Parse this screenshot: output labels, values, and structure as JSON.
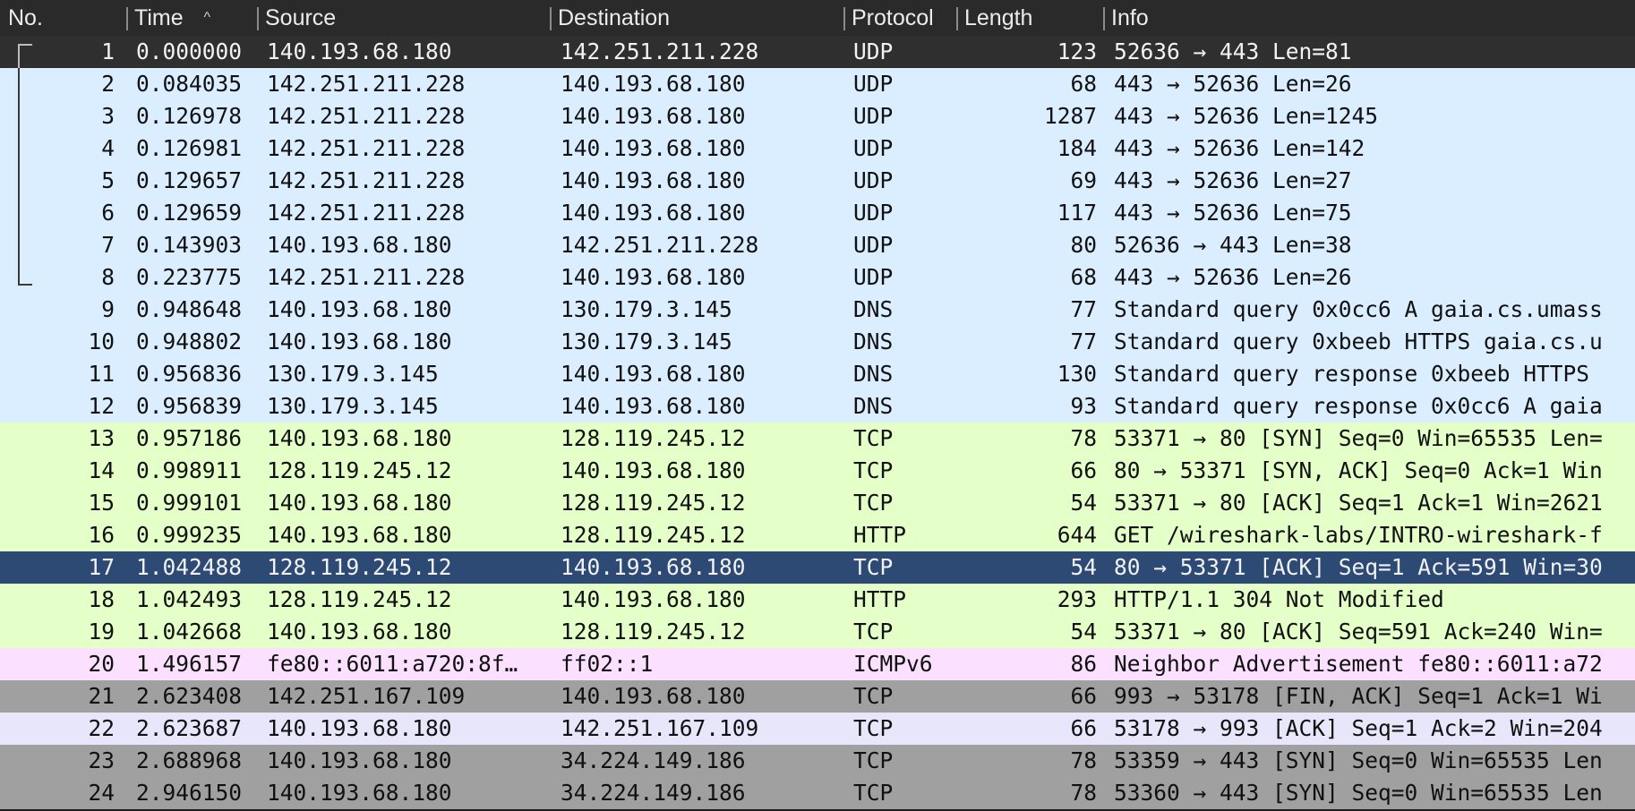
{
  "columns": {
    "no": "No.",
    "time": "Time",
    "source": "Source",
    "destination": "Destination",
    "protocol": "Protocol",
    "length": "Length",
    "info": "Info"
  },
  "sort_indicator": "^",
  "colors": {
    "udp_dns": "#dbeeff",
    "tcp_http": "#e4ffc8",
    "icmpv6": "#fce0ff",
    "gray": "#a0a0a0",
    "lavender": "#e8e6fb",
    "selected_first": "#2f2f2f",
    "selected": "#2d4a75"
  },
  "packets": [
    {
      "no": "1",
      "time": "0.000000",
      "source": "140.193.68.180",
      "destination": "142.251.211.228",
      "protocol": "UDP",
      "length": "123",
      "info": "52636 → 443 Len=81",
      "style": "selected_first",
      "conv": "start"
    },
    {
      "no": "2",
      "time": "0.084035",
      "source": "142.251.211.228",
      "destination": "140.193.68.180",
      "protocol": "UDP",
      "length": "68",
      "info": "443 → 52636 Len=26",
      "style": "udp_dns",
      "conv": "mid"
    },
    {
      "no": "3",
      "time": "0.126978",
      "source": "142.251.211.228",
      "destination": "140.193.68.180",
      "protocol": "UDP",
      "length": "1287",
      "info": "443 → 52636 Len=1245",
      "style": "udp_dns",
      "conv": "mid"
    },
    {
      "no": "4",
      "time": "0.126981",
      "source": "142.251.211.228",
      "destination": "140.193.68.180",
      "protocol": "UDP",
      "length": "184",
      "info": "443 → 52636 Len=142",
      "style": "udp_dns",
      "conv": "mid"
    },
    {
      "no": "5",
      "time": "0.129657",
      "source": "142.251.211.228",
      "destination": "140.193.68.180",
      "protocol": "UDP",
      "length": "69",
      "info": "443 → 52636 Len=27",
      "style": "udp_dns",
      "conv": "mid"
    },
    {
      "no": "6",
      "time": "0.129659",
      "source": "142.251.211.228",
      "destination": "140.193.68.180",
      "protocol": "UDP",
      "length": "117",
      "info": "443 → 52636 Len=75",
      "style": "udp_dns",
      "conv": "mid"
    },
    {
      "no": "7",
      "time": "0.143903",
      "source": "140.193.68.180",
      "destination": "142.251.211.228",
      "protocol": "UDP",
      "length": "80",
      "info": "52636 → 443 Len=38",
      "style": "udp_dns",
      "conv": "mid"
    },
    {
      "no": "8",
      "time": "0.223775",
      "source": "142.251.211.228",
      "destination": "140.193.68.180",
      "protocol": "UDP",
      "length": "68",
      "info": "443 → 52636 Len=26",
      "style": "udp_dns",
      "conv": "end"
    },
    {
      "no": "9",
      "time": "0.948648",
      "source": "140.193.68.180",
      "destination": "130.179.3.145",
      "protocol": "DNS",
      "length": "77",
      "info": "Standard query 0x0cc6 A gaia.cs.umass",
      "style": "udp_dns",
      "conv": ""
    },
    {
      "no": "10",
      "time": "0.948802",
      "source": "140.193.68.180",
      "destination": "130.179.3.145",
      "protocol": "DNS",
      "length": "77",
      "info": "Standard query 0xbeeb HTTPS gaia.cs.u",
      "style": "udp_dns",
      "conv": ""
    },
    {
      "no": "11",
      "time": "0.956836",
      "source": "130.179.3.145",
      "destination": "140.193.68.180",
      "protocol": "DNS",
      "length": "130",
      "info": "Standard query response 0xbeeb HTTPS",
      "style": "udp_dns",
      "conv": ""
    },
    {
      "no": "12",
      "time": "0.956839",
      "source": "130.179.3.145",
      "destination": "140.193.68.180",
      "protocol": "DNS",
      "length": "93",
      "info": "Standard query response 0x0cc6 A gaia",
      "style": "udp_dns",
      "conv": ""
    },
    {
      "no": "13",
      "time": "0.957186",
      "source": "140.193.68.180",
      "destination": "128.119.245.12",
      "protocol": "TCP",
      "length": "78",
      "info": "53371 → 80 [SYN] Seq=0 Win=65535 Len=",
      "style": "tcp_http",
      "conv": ""
    },
    {
      "no": "14",
      "time": "0.998911",
      "source": "128.119.245.12",
      "destination": "140.193.68.180",
      "protocol": "TCP",
      "length": "66",
      "info": "80 → 53371 [SYN, ACK] Seq=0 Ack=1 Win",
      "style": "tcp_http",
      "conv": ""
    },
    {
      "no": "15",
      "time": "0.999101",
      "source": "140.193.68.180",
      "destination": "128.119.245.12",
      "protocol": "TCP",
      "length": "54",
      "info": "53371 → 80 [ACK] Seq=1 Ack=1 Win=2621",
      "style": "tcp_http",
      "conv": ""
    },
    {
      "no": "16",
      "time": "0.999235",
      "source": "140.193.68.180",
      "destination": "128.119.245.12",
      "protocol": "HTTP",
      "length": "644",
      "info": "GET /wireshark-labs/INTRO-wireshark-f",
      "style": "tcp_http",
      "conv": ""
    },
    {
      "no": "17",
      "time": "1.042488",
      "source": "128.119.245.12",
      "destination": "140.193.68.180",
      "protocol": "TCP",
      "length": "54",
      "info": "80 → 53371 [ACK] Seq=1 Ack=591 Win=30",
      "style": "selected",
      "conv": ""
    },
    {
      "no": "18",
      "time": "1.042493",
      "source": "128.119.245.12",
      "destination": "140.193.68.180",
      "protocol": "HTTP",
      "length": "293",
      "info": "HTTP/1.1 304 Not Modified",
      "style": "tcp_http",
      "conv": ""
    },
    {
      "no": "19",
      "time": "1.042668",
      "source": "140.193.68.180",
      "destination": "128.119.245.12",
      "protocol": "TCP",
      "length": "54",
      "info": "53371 → 80 [ACK] Seq=591 Ack=240 Win=",
      "style": "tcp_http",
      "conv": ""
    },
    {
      "no": "20",
      "time": "1.496157",
      "source": "fe80::6011:a720:8f…",
      "destination": "ff02::1",
      "protocol": "ICMPv6",
      "length": "86",
      "info": "Neighbor Advertisement fe80::6011:a72",
      "style": "icmpv6",
      "conv": ""
    },
    {
      "no": "21",
      "time": "2.623408",
      "source": "142.251.167.109",
      "destination": "140.193.68.180",
      "protocol": "TCP",
      "length": "66",
      "info": "993 → 53178 [FIN, ACK] Seq=1 Ack=1 Wi",
      "style": "gray",
      "conv": ""
    },
    {
      "no": "22",
      "time": "2.623687",
      "source": "140.193.68.180",
      "destination": "142.251.167.109",
      "protocol": "TCP",
      "length": "66",
      "info": "53178 → 993 [ACK] Seq=1 Ack=2 Win=204",
      "style": "lavender",
      "conv": ""
    },
    {
      "no": "23",
      "time": "2.688968",
      "source": "140.193.68.180",
      "destination": "34.224.149.186",
      "protocol": "TCP",
      "length": "78",
      "info": "53359 → 443 [SYN] Seq=0 Win=65535 Len",
      "style": "gray",
      "conv": ""
    },
    {
      "no": "24",
      "time": "2.946150",
      "source": "140.193.68.180",
      "destination": "34.224.149.186",
      "protocol": "TCP",
      "length": "78",
      "info": "53360 → 443 [SYN] Seq=0 Win=65535 Len",
      "style": "gray",
      "conv": ""
    }
  ]
}
